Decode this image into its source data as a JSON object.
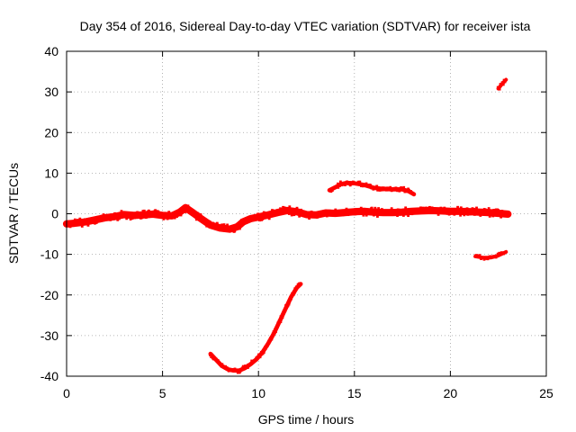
{
  "chart_data": {
    "type": "scatter",
    "title": "Day 354 of 2016, Sidereal Day-to-day VTEC variation (SDTVAR) for receiver ista",
    "xlabel": "GPS time / hours",
    "ylabel": "SDTVAR / TECUs",
    "xlim": [
      0,
      25
    ],
    "ylim": [
      -40,
      40
    ],
    "xticks": [
      0,
      5,
      10,
      15,
      20,
      25
    ],
    "yticks": [
      -40,
      -30,
      -20,
      -10,
      0,
      10,
      20,
      30,
      40
    ],
    "grid": true,
    "series_color": "#ff0000",
    "series": [
      {
        "name": "main-band",
        "band_width": 2.4,
        "x": [
          0,
          0.5,
          1,
          1.5,
          2,
          2.5,
          3,
          3.5,
          4,
          4.5,
          5,
          5.5,
          5.9,
          6.2,
          6.6,
          7,
          7.5,
          8,
          8.5,
          8.9,
          9.2,
          9.6,
          10,
          10.5,
          11,
          11.5,
          12,
          12.5,
          13,
          13.5,
          14,
          14.5,
          15,
          15.5,
          16,
          16.5,
          17,
          17.5,
          18,
          18.5,
          19,
          19.5,
          20,
          20.5,
          21,
          21.5,
          22,
          22.5,
          23
        ],
        "y": [
          -2.5,
          -2.3,
          -2,
          -1.5,
          -1,
          -0.7,
          -0.2,
          -0.4,
          -0.3,
          -0.1,
          -0.4,
          -0.5,
          0.4,
          1.5,
          0.2,
          -1.2,
          -2.8,
          -3.5,
          -3.8,
          -3.2,
          -2,
          -1.2,
          -0.8,
          -0.3,
          0.3,
          0.8,
          0.5,
          -0.2,
          -0.3,
          0.2,
          0.1,
          0.3,
          0.5,
          0.6,
          0.4,
          0.3,
          0.3,
          0.4,
          0.6,
          0.7,
          0.8,
          0.7,
          0.6,
          0.6,
          0.5,
          0.4,
          0.3,
          0.1,
          -0.1
        ]
      },
      {
        "name": "low-dip-arc",
        "band_width": 1.4,
        "x": [
          7.5,
          7.8,
          8.1,
          8.4,
          8.7,
          9,
          9.3,
          9.6,
          9.9,
          10.2,
          10.5,
          10.8,
          11.1,
          11.4,
          11.7,
          12,
          12.2
        ],
        "y": [
          -34.5,
          -36,
          -37.5,
          -38.3,
          -38.6,
          -38.6,
          -38,
          -37,
          -35.8,
          -34.2,
          -32,
          -29.5,
          -26.5,
          -23.5,
          -20.5,
          -18.2,
          -17.3
        ]
      },
      {
        "name": "upper-arc",
        "band_width": 1.4,
        "x": [
          13.7,
          14,
          14.3,
          14.6,
          15,
          15.5,
          16,
          16.5,
          17,
          17.5,
          17.8,
          18.1
        ],
        "y": [
          5.8,
          6.5,
          7.3,
          7.6,
          7.5,
          7.1,
          6.4,
          6.1,
          6,
          6,
          5.6,
          4.8
        ]
      },
      {
        "name": "lower-short-segment",
        "band_width": 1.2,
        "x": [
          21.3,
          21.7,
          22.1,
          22.5,
          22.9
        ],
        "y": [
          -10.5,
          -10.8,
          -10.8,
          -10.3,
          -9.4
        ]
      },
      {
        "name": "upper-short-segment",
        "band_width": 1.2,
        "x": [
          22.5,
          22.7,
          22.9
        ],
        "y": [
          30.8,
          32,
          33
        ]
      }
    ]
  }
}
